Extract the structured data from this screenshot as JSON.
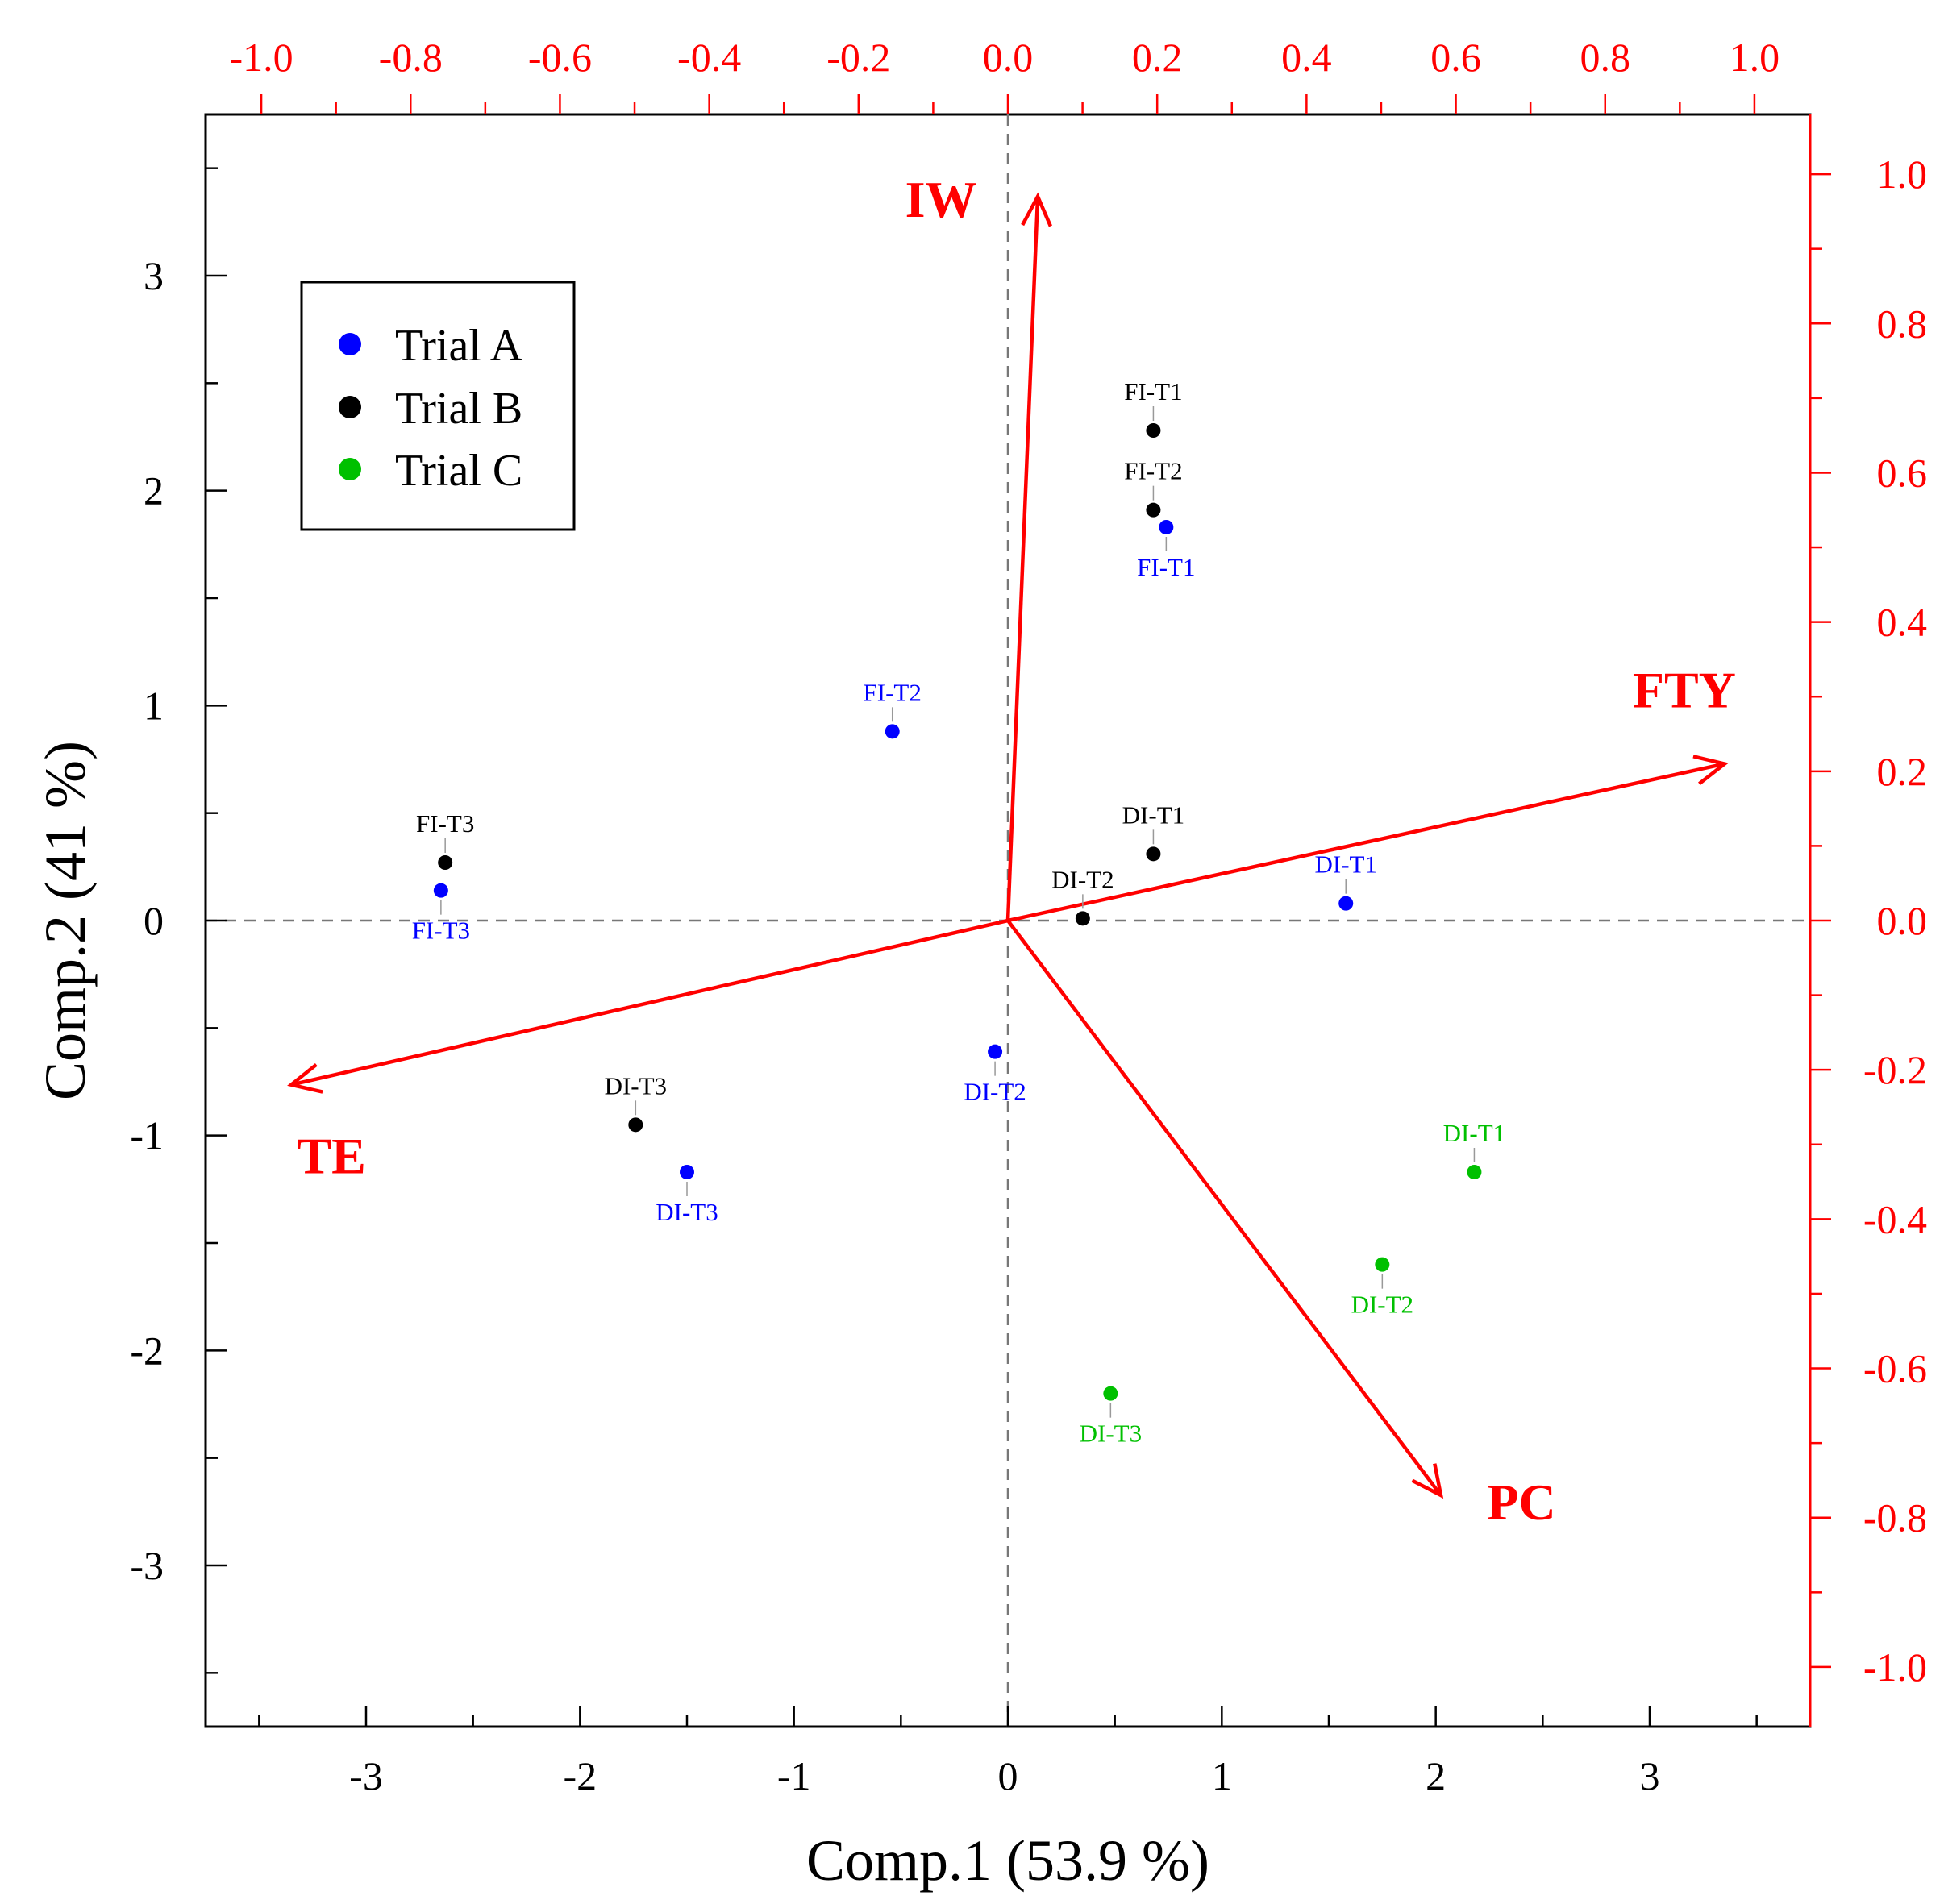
{
  "chart_data": {
    "type": "scatter",
    "subtype": "pca-biplot",
    "xlabel": "Comp.1 (53.9 %)",
    "ylabel": "Comp.2 (41 %)",
    "xlim": [
      -3.75,
      3.75
    ],
    "ylim": [
      -3.75,
      3.75
    ],
    "x_ticks": [
      -3,
      -2,
      -1,
      0,
      1,
      2,
      3
    ],
    "y_ticks": [
      -3,
      -2,
      -1,
      0,
      1,
      2,
      3
    ],
    "loading_axis_range": [
      -1.08,
      1.08
    ],
    "top_ticks": [
      "-1.0",
      "-0.8",
      "-0.6",
      "-0.4",
      "-0.2",
      "0.0",
      "0.2",
      "0.4",
      "0.6",
      "0.8",
      "1.0"
    ],
    "right_ticks": [
      "1.0",
      "0.8",
      "0.6",
      "0.4",
      "0.2",
      "0.0",
      "-0.2",
      "-0.4",
      "-0.6",
      "-0.8",
      "-1.0"
    ],
    "reference_lines": {
      "x": 0,
      "y": 0,
      "style": "dashed"
    },
    "legend": {
      "position": "top-left",
      "entries": [
        {
          "name": "Trial A",
          "color": "#0000ff"
        },
        {
          "name": "Trial B",
          "color": "#000000"
        },
        {
          "name": "Trial C",
          "color": "#00c000"
        }
      ]
    },
    "series": [
      {
        "name": "Trial A",
        "color": "#0000ff",
        "points": [
          {
            "label": "FI-T1",
            "x": 0.74,
            "y": 1.83,
            "label_pos": "below"
          },
          {
            "label": "FI-T2",
            "x": -0.54,
            "y": 0.88,
            "label_pos": "above"
          },
          {
            "label": "FI-T3",
            "x": -2.65,
            "y": 0.14,
            "label_pos": "below"
          },
          {
            "label": "DI-T1",
            "x": 1.58,
            "y": 0.08,
            "label_pos": "above"
          },
          {
            "label": "DI-T2",
            "x": -0.06,
            "y": -0.61,
            "label_pos": "below"
          },
          {
            "label": "DI-T3",
            "x": -1.5,
            "y": -1.17,
            "label_pos": "below"
          }
        ]
      },
      {
        "name": "Trial B",
        "color": "#000000",
        "points": [
          {
            "label": "FI-T1",
            "x": 0.68,
            "y": 2.28,
            "label_pos": "above"
          },
          {
            "label": "FI-T2",
            "x": 0.68,
            "y": 1.91,
            "label_pos": "above"
          },
          {
            "label": "FI-T3",
            "x": -2.63,
            "y": 0.27,
            "label_pos": "above"
          },
          {
            "label": "DI-T1",
            "x": 0.68,
            "y": 0.31,
            "label_pos": "above"
          },
          {
            "label": "DI-T2",
            "x": 0.35,
            "y": 0.01,
            "label_pos": "above"
          },
          {
            "label": "DI-T3",
            "x": -1.74,
            "y": -0.95,
            "label_pos": "above"
          }
        ]
      },
      {
        "name": "Trial C",
        "color": "#00c000",
        "points": [
          {
            "label": "DI-T1",
            "x": 2.18,
            "y": -1.17,
            "label_pos": "above"
          },
          {
            "label": "DI-T2",
            "x": 1.75,
            "y": -1.6,
            "label_pos": "below"
          },
          {
            "label": "DI-T3",
            "x": 0.48,
            "y": -2.2,
            "label_pos": "below"
          }
        ]
      }
    ],
    "loadings": {
      "color": "#ff0000",
      "vectors": [
        {
          "name": "IW",
          "x": 0.04,
          "y": 0.97
        },
        {
          "name": "FTY",
          "x": 0.96,
          "y": 0.21
        },
        {
          "name": "TE",
          "x": -0.96,
          "y": -0.22
        },
        {
          "name": "PC",
          "x": 0.58,
          "y": -0.77
        }
      ]
    }
  }
}
